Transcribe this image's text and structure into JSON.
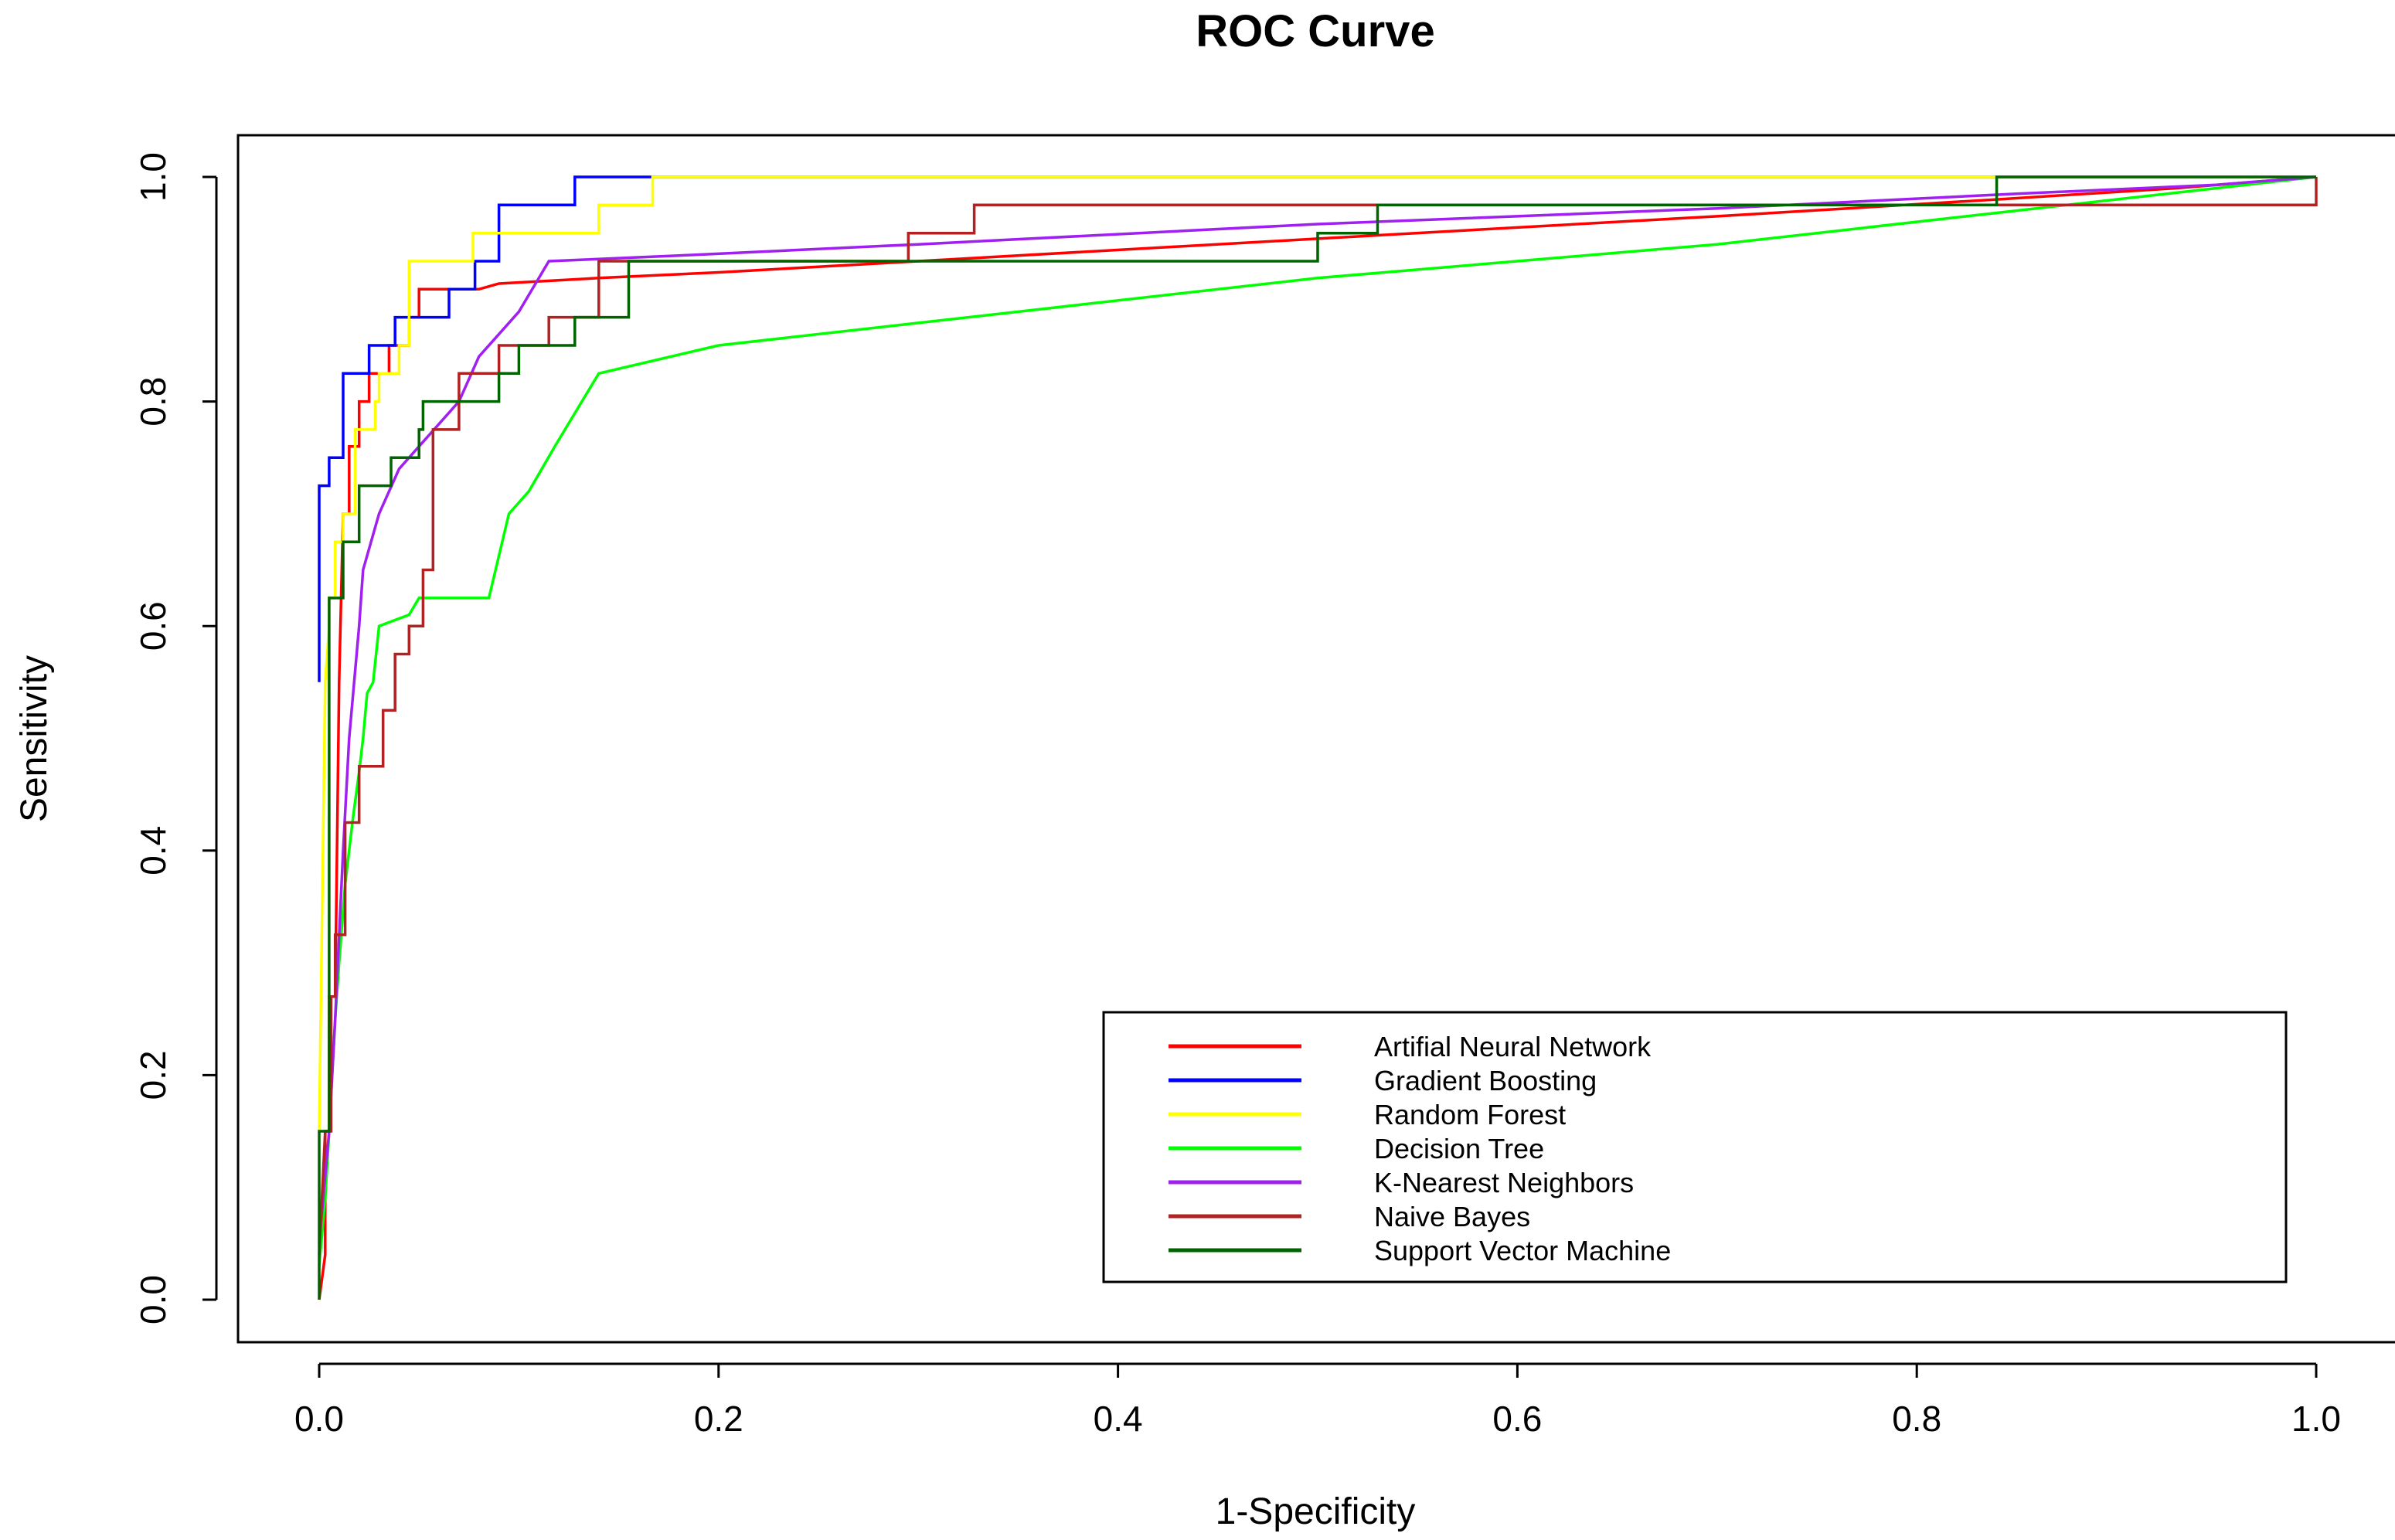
{
  "chart_data": {
    "type": "line",
    "title": "ROC Curve",
    "xlabel": "1-Specificity",
    "ylabel": "Sensitivity",
    "xlim": [
      0.0,
      1.0
    ],
    "ylim": [
      0.0,
      1.0
    ],
    "x_ticks": [
      "0.0",
      "0.2",
      "0.4",
      "0.6",
      "0.8",
      "1.0"
    ],
    "y_ticks": [
      "0.0",
      "0.2",
      "0.4",
      "0.6",
      "0.8",
      "1.0"
    ],
    "grid": false,
    "legend_position": "bottom-right",
    "series": [
      {
        "name": "Artifial Neural Network",
        "color": "#ff0000",
        "points": [
          [
            0,
            0
          ],
          [
            0.003,
            0.04
          ],
          [
            0.003,
            0.15
          ],
          [
            0.005,
            0.15
          ],
          [
            0.005,
            0.27
          ],
          [
            0.008,
            0.27
          ],
          [
            0.01,
            0.55
          ],
          [
            0.012,
            0.7
          ],
          [
            0.015,
            0.7
          ],
          [
            0.015,
            0.76
          ],
          [
            0.02,
            0.76
          ],
          [
            0.02,
            0.8
          ],
          [
            0.025,
            0.8
          ],
          [
            0.025,
            0.825
          ],
          [
            0.035,
            0.825
          ],
          [
            0.035,
            0.85
          ],
          [
            0.045,
            0.85
          ],
          [
            0.045,
            0.875
          ],
          [
            0.05,
            0.875
          ],
          [
            0.05,
            0.9
          ],
          [
            0.07,
            0.9
          ],
          [
            0.07,
            0.9
          ],
          [
            0.08,
            0.9
          ],
          [
            0.09,
            0.905
          ],
          [
            0.14,
            0.91
          ],
          [
            0.2,
            0.915
          ],
          [
            0.3,
            0.925
          ],
          [
            0.5,
            0.945
          ],
          [
            0.7,
            0.965
          ],
          [
            0.84,
            0.98
          ],
          [
            0.93,
            0.99
          ],
          [
            1.0,
            1.0
          ]
        ]
      },
      {
        "name": "Gradient Boosting",
        "color": "#0000ff",
        "points": [
          [
            0,
            0.55
          ],
          [
            0,
            0.725
          ],
          [
            0.005,
            0.725
          ],
          [
            0.005,
            0.75
          ],
          [
            0.012,
            0.75
          ],
          [
            0.012,
            0.775
          ],
          [
            0.012,
            0.825
          ],
          [
            0.025,
            0.825
          ],
          [
            0.025,
            0.85
          ],
          [
            0.038,
            0.85
          ],
          [
            0.038,
            0.875
          ],
          [
            0.05,
            0.875
          ],
          [
            0.05,
            0.875
          ],
          [
            0.065,
            0.875
          ],
          [
            0.065,
            0.9
          ],
          [
            0.078,
            0.9
          ],
          [
            0.078,
            0.925
          ],
          [
            0.09,
            0.925
          ],
          [
            0.09,
            0.95
          ],
          [
            0.09,
            0.975
          ],
          [
            0.128,
            0.975
          ],
          [
            0.128,
            1.0
          ],
          [
            1.0,
            1.0
          ]
        ]
      },
      {
        "name": "Random Forest",
        "color": "#ffff00",
        "points": [
          [
            0,
            0.15
          ],
          [
            0.003,
            0.55
          ],
          [
            0.005,
            0.6
          ],
          [
            0.005,
            0.625
          ],
          [
            0.008,
            0.625
          ],
          [
            0.008,
            0.675
          ],
          [
            0.012,
            0.675
          ],
          [
            0.012,
            0.7
          ],
          [
            0.018,
            0.7
          ],
          [
            0.018,
            0.775
          ],
          [
            0.028,
            0.775
          ],
          [
            0.028,
            0.8
          ],
          [
            0.03,
            0.8
          ],
          [
            0.03,
            0.825
          ],
          [
            0.04,
            0.825
          ],
          [
            0.04,
            0.85
          ],
          [
            0.045,
            0.85
          ],
          [
            0.045,
            0.925
          ],
          [
            0.077,
            0.925
          ],
          [
            0.077,
            0.95
          ],
          [
            0.14,
            0.95
          ],
          [
            0.14,
            0.975
          ],
          [
            0.167,
            0.975
          ],
          [
            0.167,
            1.0
          ],
          [
            1.0,
            1.0
          ]
        ]
      },
      {
        "name": "Decision Tree",
        "color": "#00ff00",
        "points": [
          [
            0,
            0.03
          ],
          [
            0.003,
            0.09
          ],
          [
            0.005,
            0.15
          ],
          [
            0.008,
            0.25
          ],
          [
            0.01,
            0.3
          ],
          [
            0.013,
            0.37
          ],
          [
            0.017,
            0.43
          ],
          [
            0.02,
            0.47
          ],
          [
            0.022,
            0.5
          ],
          [
            0.024,
            0.54
          ],
          [
            0.027,
            0.55
          ],
          [
            0.03,
            0.6
          ],
          [
            0.045,
            0.61
          ],
          [
            0.05,
            0.625
          ],
          [
            0.085,
            0.625
          ],
          [
            0.095,
            0.7
          ],
          [
            0.105,
            0.72
          ],
          [
            0.118,
            0.76
          ],
          [
            0.14,
            0.825
          ],
          [
            0.2,
            0.85
          ],
          [
            0.3,
            0.87
          ],
          [
            0.5,
            0.91
          ],
          [
            0.7,
            0.94
          ],
          [
            0.85,
            0.97
          ],
          [
            1.0,
            1.0
          ]
        ]
      },
      {
        "name": "K-Nearest Neighbors",
        "color": "#a020f0",
        "points": [
          [
            0,
            0.05
          ],
          [
            0.005,
            0.15
          ],
          [
            0.008,
            0.25
          ],
          [
            0.012,
            0.4
          ],
          [
            0.015,
            0.5
          ],
          [
            0.02,
            0.6
          ],
          [
            0.022,
            0.65
          ],
          [
            0.03,
            0.7
          ],
          [
            0.04,
            0.74
          ],
          [
            0.05,
            0.76
          ],
          [
            0.06,
            0.78
          ],
          [
            0.07,
            0.8
          ],
          [
            0.08,
            0.84
          ],
          [
            0.1,
            0.88
          ],
          [
            0.115,
            0.925
          ],
          [
            0.18,
            0.93
          ],
          [
            0.3,
            0.94
          ],
          [
            0.5,
            0.958
          ],
          [
            0.7,
            0.972
          ],
          [
            0.85,
            0.985
          ],
          [
            0.95,
            0.993
          ],
          [
            1.0,
            1.0
          ]
        ]
      },
      {
        "name": "Naive Bayes",
        "color": "#b22222",
        "points": [
          [
            0,
            0.04
          ],
          [
            0.003,
            0.15
          ],
          [
            0.006,
            0.15
          ],
          [
            0.006,
            0.27
          ],
          [
            0.008,
            0.27
          ],
          [
            0.008,
            0.325
          ],
          [
            0.013,
            0.325
          ],
          [
            0.013,
            0.425
          ],
          [
            0.02,
            0.425
          ],
          [
            0.02,
            0.475
          ],
          [
            0.032,
            0.475
          ],
          [
            0.032,
            0.525
          ],
          [
            0.038,
            0.525
          ],
          [
            0.038,
            0.575
          ],
          [
            0.045,
            0.575
          ],
          [
            0.045,
            0.6
          ],
          [
            0.052,
            0.6
          ],
          [
            0.052,
            0.65
          ],
          [
            0.057,
            0.65
          ],
          [
            0.057,
            0.775
          ],
          [
            0.07,
            0.775
          ],
          [
            0.07,
            0.825
          ],
          [
            0.09,
            0.825
          ],
          [
            0.09,
            0.85
          ],
          [
            0.115,
            0.85
          ],
          [
            0.115,
            0.875
          ],
          [
            0.14,
            0.875
          ],
          [
            0.14,
            0.9
          ],
          [
            0.14,
            0.925
          ],
          [
            0.165,
            0.925
          ],
          [
            0.165,
            0.925
          ],
          [
            0.295,
            0.925
          ],
          [
            0.295,
            0.95
          ],
          [
            0.328,
            0.95
          ],
          [
            0.328,
            0.975
          ],
          [
            0.84,
            0.975
          ],
          [
            0.84,
            0.975
          ],
          [
            1.0,
            0.975
          ],
          [
            1.0,
            1.0
          ]
        ]
      },
      {
        "name": "Support Vector Machine",
        "color": "#006400",
        "points": [
          [
            0,
            0
          ],
          [
            0,
            0.15
          ],
          [
            0.005,
            0.15
          ],
          [
            0.005,
            0.625
          ],
          [
            0.012,
            0.625
          ],
          [
            0.012,
            0.675
          ],
          [
            0.02,
            0.675
          ],
          [
            0.02,
            0.725
          ],
          [
            0.036,
            0.725
          ],
          [
            0.036,
            0.75
          ],
          [
            0.05,
            0.75
          ],
          [
            0.05,
            0.775
          ],
          [
            0.052,
            0.775
          ],
          [
            0.052,
            0.8
          ],
          [
            0.09,
            0.8
          ],
          [
            0.09,
            0.825
          ],
          [
            0.1,
            0.825
          ],
          [
            0.1,
            0.85
          ],
          [
            0.128,
            0.85
          ],
          [
            0.128,
            0.875
          ],
          [
            0.155,
            0.875
          ],
          [
            0.155,
            0.925
          ],
          [
            0.3,
            0.925
          ],
          [
            0.5,
            0.925
          ],
          [
            0.5,
            0.95
          ],
          [
            0.53,
            0.95
          ],
          [
            0.53,
            0.975
          ],
          [
            0.84,
            0.975
          ],
          [
            0.84,
            1.0
          ],
          [
            1.0,
            1.0
          ]
        ]
      }
    ]
  }
}
